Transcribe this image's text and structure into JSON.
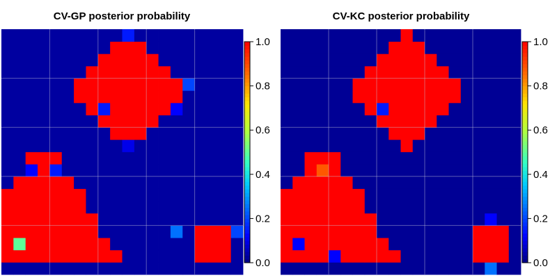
{
  "chart_data": [
    {
      "type": "heatmap",
      "title": "CV-GP posterior probability",
      "grid": true,
      "colorbar": {
        "min": 0,
        "max": 1,
        "ticks": [
          "0.0",
          "0.2",
          "0.4",
          "0.6",
          "0.8",
          "1.0"
        ]
      },
      "regions": [
        {
          "shape": "diamond",
          "center": [
            10.5,
            15
          ],
          "radius": 4,
          "value": 1.0
        },
        {
          "shape": "triangle",
          "apex_col": 3.5,
          "apex_row": 10,
          "base_row": 16,
          "half_width_start": 1,
          "value": 1.0
        },
        {
          "shape": "rect",
          "cols": [
            16,
            18
          ],
          "rows": [
            1,
            3
          ],
          "value": 1.0
        }
      ],
      "cells": [
        {
          "col": 1,
          "row": 2,
          "value": 0.5
        },
        {
          "col": 14,
          "row": 3,
          "value": 0.25
        },
        {
          "col": 19,
          "row": 3,
          "value": 0.2
        },
        {
          "col": 4,
          "row": 8,
          "value": 0.15
        },
        {
          "col": 2,
          "row": 8,
          "value": 0.12
        },
        {
          "col": 15,
          "row": 15,
          "value": 0.2
        },
        {
          "col": 10,
          "row": 19,
          "value": 0.15
        },
        {
          "col": 8,
          "row": 13,
          "value": 0.15
        },
        {
          "col": 14,
          "row": 13,
          "value": 0.12
        },
        {
          "col": 10,
          "row": 10,
          "value": 0.1
        }
      ],
      "background": 0.03
    },
    {
      "type": "heatmap",
      "title": "CV-KC posterior probability",
      "grid": true,
      "colorbar": {
        "min": 0,
        "max": 1,
        "ticks": [
          "0.0",
          "0.2",
          "0.4",
          "0.6",
          "0.8",
          "1.0"
        ]
      },
      "regions": [
        {
          "shape": "diamond",
          "center": [
            10.5,
            15
          ],
          "radius": 4,
          "value": 1.0
        },
        {
          "shape": "triangle",
          "apex_col": 3.5,
          "apex_row": 10,
          "base_row": 16,
          "half_width_start": 1,
          "value": 1.0
        },
        {
          "shape": "rect",
          "cols": [
            16,
            18
          ],
          "rows": [
            1,
            3
          ],
          "value": 1.0
        }
      ],
      "cells": [
        {
          "col": 3,
          "row": 8,
          "value": 0.88
        },
        {
          "col": 17,
          "row": 0,
          "value": 0.25
        },
        {
          "col": 17,
          "row": 4,
          "value": 0.12
        },
        {
          "col": 1,
          "row": 2,
          "value": 0.12
        },
        {
          "col": 8,
          "row": 13,
          "value": 0.15
        },
        {
          "col": 4,
          "row": 1,
          "value": 0.12
        }
      ],
      "background": 0.02
    }
  ]
}
